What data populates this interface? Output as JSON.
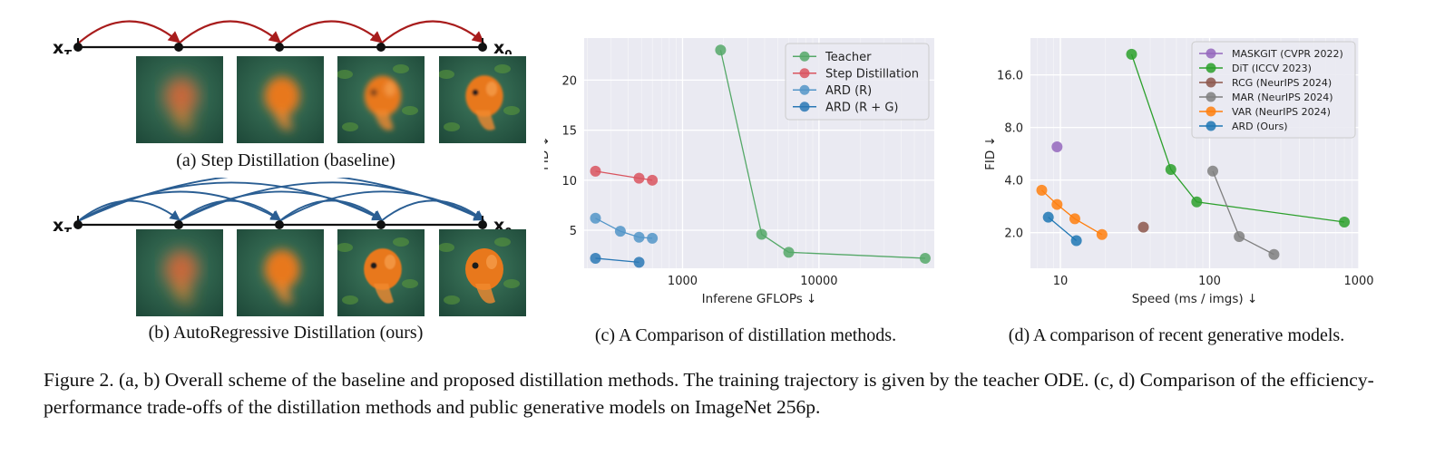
{
  "panel_a": {
    "left_label": "x",
    "left_sub": "T",
    "right_label": "x",
    "right_sub": "0",
    "caption": "(a) Step Distillation (baseline)",
    "arrow_color": "#a81c1c",
    "images": [
      {
        "name": "blurry-fish-1",
        "sharpness": 0.1
      },
      {
        "name": "blurry-fish-2",
        "sharpness": 0.45
      },
      {
        "name": "fish-3",
        "sharpness": 0.75
      },
      {
        "name": "fish-4",
        "sharpness": 0.9
      }
    ]
  },
  "panel_b": {
    "left_label": "x",
    "left_sub": "T",
    "right_label": "x",
    "right_sub": "0",
    "caption": "(b) AutoRegressive Distillation (ours)",
    "arrow_color": "#2a5e93",
    "images": [
      {
        "name": "blurry-fish-1",
        "sharpness": 0.1
      },
      {
        "name": "blurry-fish-2",
        "sharpness": 0.45
      },
      {
        "name": "sharp-fish-3",
        "sharpness": 0.95
      },
      {
        "name": "sharp-fish-4",
        "sharpness": 1.0
      }
    ]
  },
  "chart_c_caption": "(c) A Comparison of distillation methods.",
  "chart_d_caption": "(d) A comparison of recent generative models.",
  "figure_caption": "Figure 2. (a, b) Overall scheme of the baseline and proposed distillation methods. The training trajectory is given by the teacher ODE. (c, d) Comparison of the efficiency-performance trade-offs of the distillation methods and public generative models on ImageNet 256p.",
  "chart_data": [
    {
      "type": "line",
      "xlabel": "Inferene GFLOPs ↓",
      "ylabel": "FID ↓",
      "xscale": "log",
      "xlim": [
        190,
        70000
      ],
      "ylim": [
        1.2,
        24.2
      ],
      "xticks": [
        1000,
        10000
      ],
      "xtick_labels": [
        "1000",
        "10000"
      ],
      "yticks": [
        5,
        10,
        15,
        20
      ],
      "ytick_labels": [
        "5",
        "10",
        "15",
        "20"
      ],
      "grid": true,
      "legend_position": "top-right",
      "series": [
        {
          "name": "Teacher",
          "color": "#55a868",
          "x": [
            1900,
            3800,
            6000,
            60000
          ],
          "y": [
            23.0,
            4.6,
            2.8,
            2.2
          ]
        },
        {
          "name": "Step Distillation",
          "color": "#d9545f",
          "x": [
            230,
            480,
            600
          ],
          "y": [
            10.9,
            10.2,
            10.0
          ]
        },
        {
          "name": "ARD (R)",
          "color": "#5295c8",
          "x": [
            230,
            350,
            480,
            600
          ],
          "y": [
            6.2,
            4.9,
            4.3,
            4.2
          ]
        },
        {
          "name": "ARD (R + G)",
          "color": "#2a78b5",
          "x": [
            230,
            480
          ],
          "y": [
            2.2,
            1.8
          ]
        }
      ]
    },
    {
      "type": "line",
      "xlabel": "Speed (ms / imgs) ↓",
      "ylabel": "FID ↓",
      "xscale": "log",
      "yscale": "log",
      "xlim": [
        6.3,
        1000
      ],
      "ylim": [
        1.25,
        26
      ],
      "xticks": [
        10,
        100,
        1000
      ],
      "xtick_labels": [
        "10",
        "100",
        "1000"
      ],
      "yticks": [
        2.0,
        4.0,
        8.0,
        16.0
      ],
      "ytick_labels": [
        "2.0",
        "4.0",
        "8.0",
        "16.0"
      ],
      "grid": true,
      "legend_position": "top-right",
      "series": [
        {
          "name": "MASKGIT (CVPR 2022)",
          "color": "#9467bd",
          "x": [
            9.5
          ],
          "y": [
            6.2
          ]
        },
        {
          "name": "DiT (ICCV 2023)",
          "color": "#2ca02c",
          "x": [
            30,
            55,
            82,
            800
          ],
          "y": [
            21.0,
            4.6,
            3.0,
            2.3
          ]
        },
        {
          "name": "RCG (NeurIPS 2024)",
          "color": "#8c564b",
          "x": [
            36
          ],
          "y": [
            2.15
          ]
        },
        {
          "name": "MAR (NeurIPS 2024)",
          "color": "#7f7f7f",
          "x": [
            105,
            158,
            270
          ],
          "y": [
            4.5,
            1.9,
            1.5
          ]
        },
        {
          "name": "VAR (NeurIPS 2024)",
          "color": "#ff7f0e",
          "x": [
            7.5,
            9.5,
            12.5,
            19
          ],
          "y": [
            3.5,
            2.9,
            2.4,
            1.95
          ]
        },
        {
          "name": "ARD (Ours)",
          "color": "#1f77b4",
          "x": [
            8.3,
            12.8
          ],
          "y": [
            2.45,
            1.8
          ]
        }
      ]
    }
  ]
}
